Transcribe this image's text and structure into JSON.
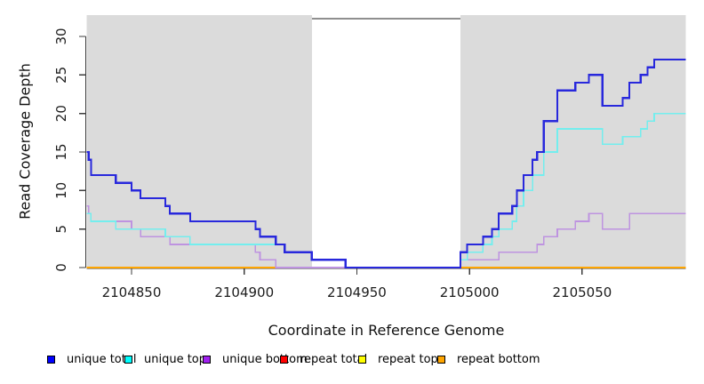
{
  "chart_data": {
    "type": "line",
    "subtype": "step-after",
    "title": "",
    "xlabel": "Coordinate in Reference Genome",
    "ylabel": "Read Coverage Depth",
    "xlim": [
      2104830,
      2105096
    ],
    "ylim": [
      0,
      32.8
    ],
    "x_ticks": [
      2104850,
      2104900,
      2104950,
      2105000,
      2105050
    ],
    "y_ticks": [
      0,
      5,
      10,
      15,
      20,
      25,
      30
    ],
    "grid": false,
    "legend_position": "bottom",
    "background_color": "#ffffff",
    "shaded_regions": [
      {
        "x0": 2104830,
        "x1": 2104930,
        "color": "#dbdbdb"
      },
      {
        "x0": 2104996,
        "x1": 2105096,
        "color": "#dbdbdb"
      }
    ],
    "gap_marker": {
      "x0": 2104930,
      "x1": 2104996,
      "color": "#8f8f8f"
    },
    "axis_color": "#3c3c3c",
    "series": [
      {
        "name": "unique total",
        "line_color": "#2828dc",
        "legend_color": "#0000ff",
        "line_width": 2.2,
        "points": [
          [
            2104830,
            15
          ],
          [
            2104831,
            14
          ],
          [
            2104832,
            12
          ],
          [
            2104843,
            11
          ],
          [
            2104850,
            10
          ],
          [
            2104854,
            9
          ],
          [
            2104865,
            8
          ],
          [
            2104867,
            7
          ],
          [
            2104876,
            6
          ],
          [
            2104905,
            5
          ],
          [
            2104907,
            4
          ],
          [
            2104914,
            3
          ],
          [
            2104918,
            2
          ],
          [
            2104930,
            1
          ],
          [
            2104945,
            0
          ],
          [
            2104996,
            2
          ],
          [
            2104999,
            3
          ],
          [
            2105006,
            4
          ],
          [
            2105010,
            5
          ],
          [
            2105013,
            7
          ],
          [
            2105019,
            8
          ],
          [
            2105021,
            10
          ],
          [
            2105024,
            12
          ],
          [
            2105028,
            14
          ],
          [
            2105030,
            15
          ],
          [
            2105033,
            19
          ],
          [
            2105039,
            23
          ],
          [
            2105047,
            24
          ],
          [
            2105053,
            25
          ],
          [
            2105059,
            21
          ],
          [
            2105068,
            22
          ],
          [
            2105071,
            24
          ],
          [
            2105076,
            25
          ],
          [
            2105079,
            26
          ],
          [
            2105082,
            27
          ]
        ]
      },
      {
        "name": "unique top",
        "line_color": "#73eeee",
        "legend_color": "#00ffff",
        "line_width": 1.6,
        "points": [
          [
            2104830,
            7
          ],
          [
            2104832,
            6
          ],
          [
            2104843,
            5
          ],
          [
            2104865,
            4
          ],
          [
            2104876,
            3
          ],
          [
            2104918,
            2
          ],
          [
            2104930,
            1
          ],
          [
            2104945,
            0
          ],
          [
            2104996,
            1
          ],
          [
            2104999,
            2
          ],
          [
            2105006,
            3
          ],
          [
            2105010,
            4
          ],
          [
            2105013,
            5
          ],
          [
            2105019,
            6
          ],
          [
            2105021,
            8
          ],
          [
            2105024,
            10
          ],
          [
            2105028,
            12
          ],
          [
            2105033,
            15
          ],
          [
            2105039,
            18
          ],
          [
            2105059,
            16
          ],
          [
            2105068,
            17
          ],
          [
            2105076,
            18
          ],
          [
            2105079,
            19
          ],
          [
            2105082,
            20
          ]
        ]
      },
      {
        "name": "unique bottom",
        "line_color": "#be93e0",
        "legend_color": "#a020f0",
        "line_width": 1.6,
        "points": [
          [
            2104830,
            8
          ],
          [
            2104831,
            7
          ],
          [
            2104832,
            6
          ],
          [
            2104850,
            5
          ],
          [
            2104854,
            4
          ],
          [
            2104867,
            3
          ],
          [
            2104905,
            2
          ],
          [
            2104907,
            1
          ],
          [
            2104914,
            0
          ],
          [
            2104996,
            1
          ],
          [
            2105013,
            2
          ],
          [
            2105030,
            3
          ],
          [
            2105033,
            4
          ],
          [
            2105039,
            5
          ],
          [
            2105047,
            6
          ],
          [
            2105053,
            7
          ],
          [
            2105059,
            5
          ],
          [
            2105071,
            7
          ]
        ]
      },
      {
        "name": "repeat total",
        "line_color": "#dd0000",
        "legend_color": "#ff0000",
        "line_width": 1.6,
        "points": [
          [
            2104830,
            0
          ]
        ]
      },
      {
        "name": "repeat top",
        "line_color": "#f5e800",
        "legend_color": "#ffff00",
        "line_width": 1.6,
        "points": [
          [
            2104830,
            0
          ]
        ]
      },
      {
        "name": "repeat bottom",
        "line_color": "#ffa500",
        "legend_color": "#ffa500",
        "line_width": 1.8,
        "points": [
          [
            2104830,
            0
          ]
        ]
      }
    ],
    "legend_item_x": [
      53,
      140,
      228,
      315,
      403,
      492
    ]
  }
}
